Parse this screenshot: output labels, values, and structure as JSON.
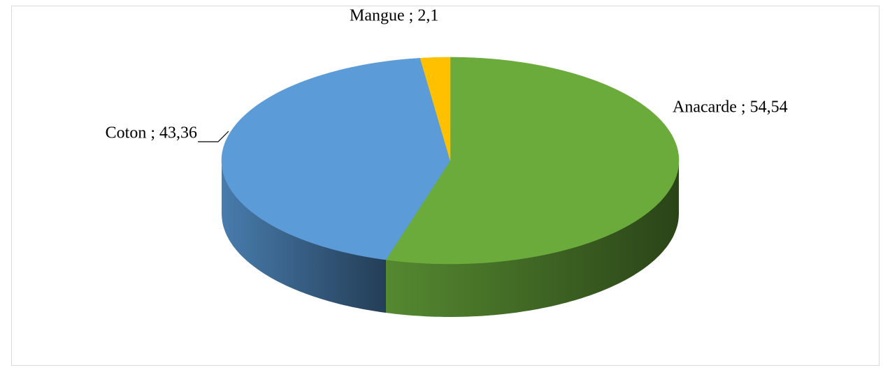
{
  "chart_data": {
    "type": "pie3d",
    "values": [
      54.54,
      43.36,
      2.1
    ],
    "value_labels": [
      "Anacarde ; 54,54",
      "Coton ; 43,36",
      "Mangue ; 2,1"
    ],
    "colors": [
      "#6aab3c",
      "#5a9bd8",
      "#ffc000"
    ]
  }
}
